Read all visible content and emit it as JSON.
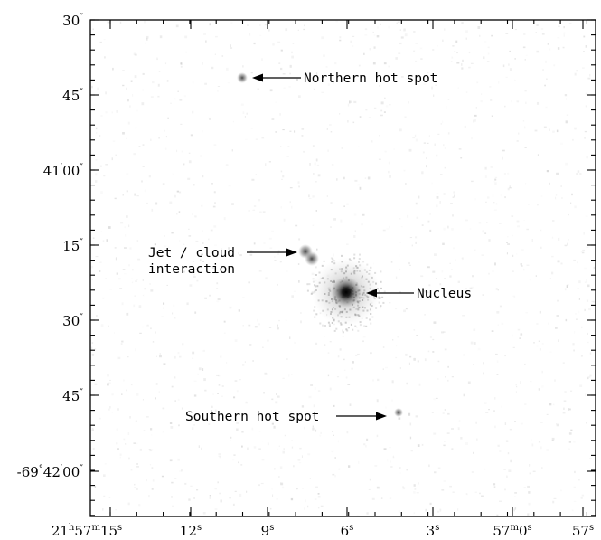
{
  "figure": {
    "y_ticks": [
      {
        "main": "30",
        "sup": "″"
      },
      {
        "main": "45",
        "sup": "″"
      },
      {
        "main": "41",
        "sup": "′",
        "main2": "00",
        "sup2": "″"
      },
      {
        "main": "15",
        "sup": "″"
      },
      {
        "main": "30",
        "sup": "″"
      },
      {
        "main": "45",
        "sup": "″"
      },
      {
        "main": "-69",
        "sup": "°",
        "main2": "42",
        "sup2": "′",
        "main3": "00",
        "sup3": "″"
      }
    ],
    "x_ticks": [
      {
        "main": "21",
        "sup": "h",
        "main2": "57",
        "sup2": "m",
        "main3": "15",
        "sup3": "s"
      },
      {
        "main": "12",
        "sup": "s"
      },
      {
        "main": "9",
        "sup": "s"
      },
      {
        "main": "6",
        "sup": "s"
      },
      {
        "main": "3",
        "sup": "s"
      },
      {
        "main": "57",
        "sup": "m",
        "main2": "0",
        "sup2": "s"
      },
      {
        "main": "57",
        "sup": "s"
      }
    ],
    "annotations": {
      "northern": "Northern hot spot",
      "jet_line1": "Jet / cloud",
      "jet_line2": "interaction",
      "nucleus": "Nucleus",
      "southern": "Southern hot spot"
    },
    "colors": {
      "ink": "#000000",
      "background": "#ffffff"
    }
  }
}
